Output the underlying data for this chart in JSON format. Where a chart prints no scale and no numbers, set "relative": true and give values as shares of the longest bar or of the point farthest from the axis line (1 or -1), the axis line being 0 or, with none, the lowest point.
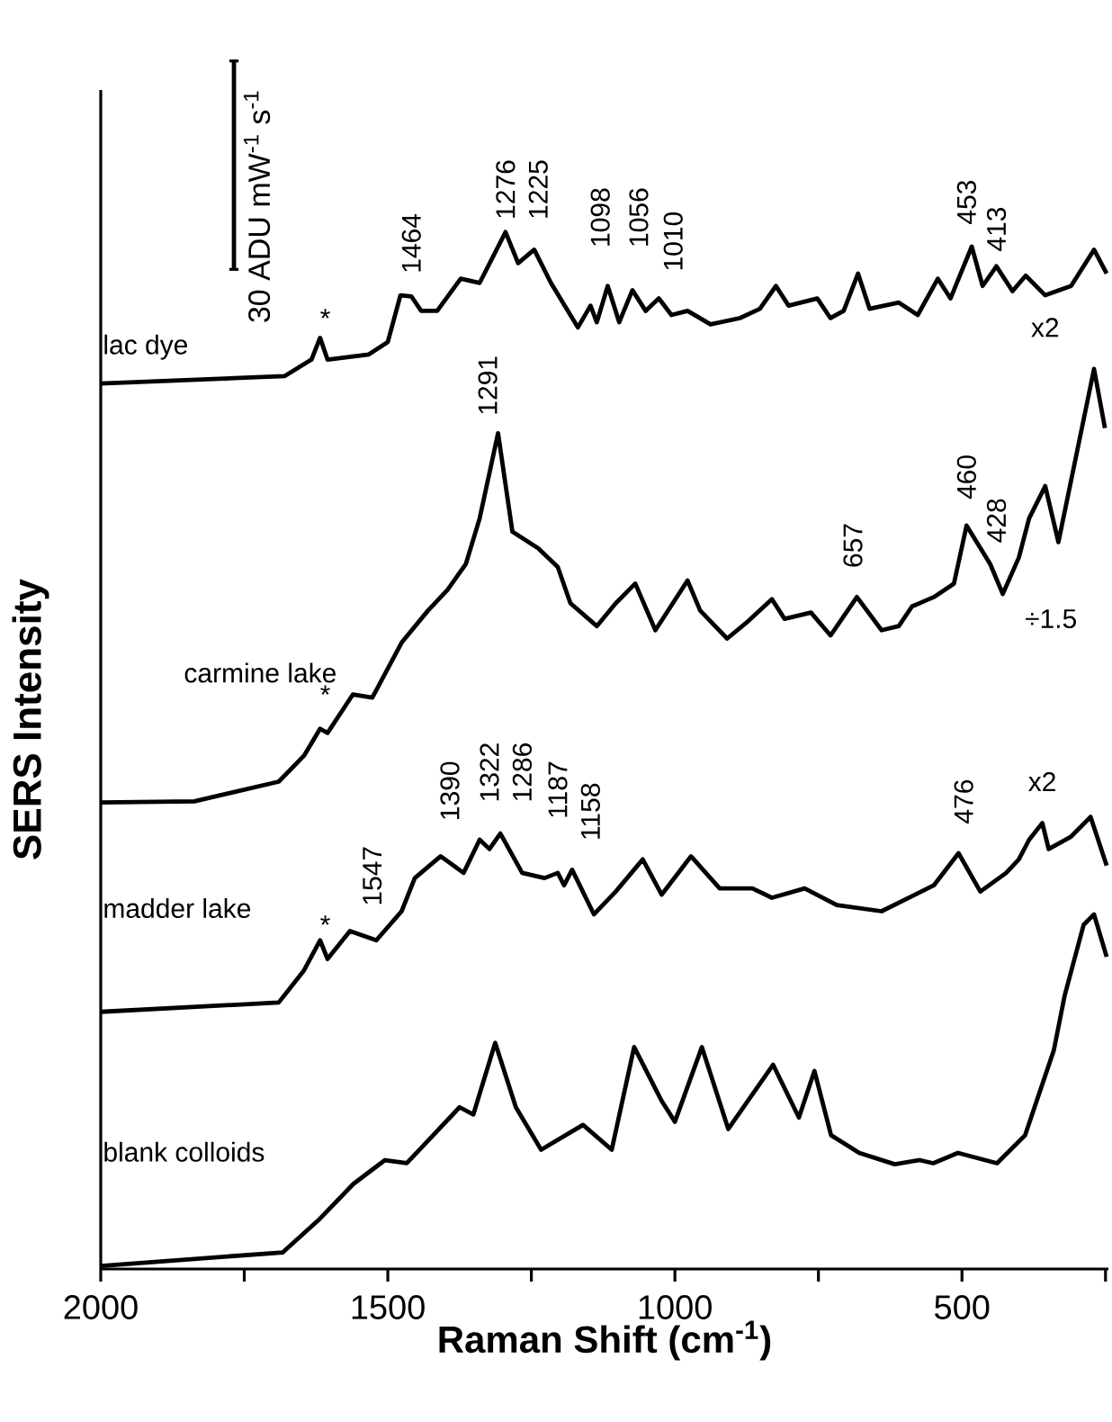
{
  "chart_data": {
    "type": "line",
    "relative": true,
    "xlabel": "Raman Shift (cm$^{-1}$)",
    "ylabel": "SERS Intensity",
    "xlim": [
      2000,
      245
    ],
    "xticks": [
      2000,
      {
        "value": 1750,
        "label": null
      },
      1500,
      {
        "value": 1250,
        "label": null
      },
      1000,
      {
        "value": 750,
        "label": null
      },
      500,
      {
        "value": 250,
        "label": null
      }
    ],
    "series": [
      {
        "name": "lac dye",
        "color": "#000000",
        "x": [
          2000,
          1680,
          1633,
          1618,
          1605,
          1533,
          1500,
          1478,
          1459,
          1442,
          1414,
          1373,
          1340,
          1295,
          1273,
          1245,
          1216,
          1169,
          1147,
          1136,
          1117,
          1097,
          1074,
          1051,
          1028,
          1006,
          978,
          938,
          887,
          852,
          824,
          802,
          752,
          729,
          706,
          681,
          661,
          610,
          577,
          542,
          520,
          483,
          464,
          440,
          412,
          389,
          355,
          310,
          270,
          248
        ],
        "values": [
          0.854,
          0.861,
          0.877,
          0.898,
          0.877,
          0.882,
          0.894,
          0.939,
          0.938,
          0.924,
          0.924,
          0.955,
          0.951,
          1.0,
          0.97,
          0.983,
          0.951,
          0.908,
          0.929,
          0.913,
          0.948,
          0.913,
          0.944,
          0.924,
          0.936,
          0.92,
          0.924,
          0.911,
          0.917,
          0.926,
          0.948,
          0.929,
          0.936,
          0.917,
          0.924,
          0.96,
          0.926,
          0.932,
          0.92,
          0.955,
          0.936,
          0.986,
          0.948,
          0.967,
          0.943,
          0.958,
          0.939,
          0.948,
          0.983,
          0.96
        ]
      },
      {
        "name": "carmine lake",
        "color": "#000000",
        "x": [
          2000,
          1837,
          1690,
          1646,
          1618,
          1605,
          1561,
          1527,
          1476,
          1430,
          1396,
          1364,
          1340,
          1308,
          1283,
          1238,
          1204,
          1182,
          1136,
          1103,
          1069,
          1034,
          978,
          956,
          909,
          876,
          831,
          809,
          763,
          729,
          683,
          640,
          610,
          587,
          549,
          514,
          492,
          451,
          429,
          401,
          383,
          355,
          332,
          293,
          270,
          251
        ],
        "values": [
          0.45,
          0.451,
          0.47,
          0.495,
          0.521,
          0.517,
          0.554,
          0.551,
          0.604,
          0.635,
          0.655,
          0.68,
          0.724,
          0.806,
          0.711,
          0.695,
          0.677,
          0.642,
          0.62,
          0.642,
          0.661,
          0.616,
          0.664,
          0.635,
          0.608,
          0.623,
          0.646,
          0.627,
          0.633,
          0.611,
          0.648,
          0.616,
          0.62,
          0.639,
          0.648,
          0.661,
          0.717,
          0.68,
          0.651,
          0.686,
          0.724,
          0.755,
          0.701,
          0.806,
          0.868,
          0.811
        ]
      },
      {
        "name": "madder lake",
        "color": "#000000",
        "x": [
          2000,
          1690,
          1646,
          1618,
          1605,
          1566,
          1520,
          1476,
          1453,
          1408,
          1368,
          1340,
          1323,
          1304,
          1266,
          1227,
          1204,
          1193,
          1179,
          1141,
          1103,
          1056,
          1023,
          972,
          922,
          865,
          831,
          774,
          718,
          640,
          549,
          506,
          468,
          423,
          401,
          383,
          360,
          349,
          310,
          276,
          248
        ],
        "values": [
          0.248,
          0.257,
          0.288,
          0.317,
          0.299,
          0.326,
          0.317,
          0.345,
          0.377,
          0.398,
          0.382,
          0.414,
          0.405,
          0.42,
          0.382,
          0.377,
          0.382,
          0.37,
          0.385,
          0.342,
          0.364,
          0.395,
          0.361,
          0.398,
          0.367,
          0.367,
          0.358,
          0.367,
          0.351,
          0.345,
          0.37,
          0.401,
          0.364,
          0.382,
          0.395,
          0.414,
          0.43,
          0.405,
          0.417,
          0.436,
          0.389
        ]
      },
      {
        "name": "blank colloids",
        "color": "#000000",
        "x": [
          2000,
          1683,
          1621,
          1560,
          1505,
          1467,
          1375,
          1351,
          1313,
          1277,
          1233,
          1160,
          1110,
          1071,
          1024,
          1000,
          953,
          907,
          829,
          784,
          757,
          728,
          679,
          617,
          574,
          550,
          507,
          439,
          390,
          340,
          321,
          288,
          270,
          248
        ],
        "values": [
          0.003,
          0.016,
          0.047,
          0.082,
          0.105,
          0.102,
          0.156,
          0.149,
          0.218,
          0.156,
          0.115,
          0.139,
          0.115,
          0.214,
          0.163,
          0.142,
          0.214,
          0.135,
          0.197,
          0.146,
          0.191,
          0.129,
          0.112,
          0.101,
          0.105,
          0.102,
          0.112,
          0.102,
          0.129,
          0.211,
          0.264,
          0.332,
          0.342,
          0.301
        ]
      }
    ],
    "annotations": [
      "30 ADU mW$^{-1}$ s$^{-1}$",
      "1464",
      "1276",
      "1225",
      "1098",
      "1056",
      "1010",
      "453",
      "413",
      "*",
      "x2",
      "1291",
      "657",
      "460",
      "428",
      "*",
      "÷1.5",
      "1547",
      "1390",
      "1322",
      "1286",
      "1187",
      "1158",
      "476",
      "x2",
      "*"
    ]
  }
}
